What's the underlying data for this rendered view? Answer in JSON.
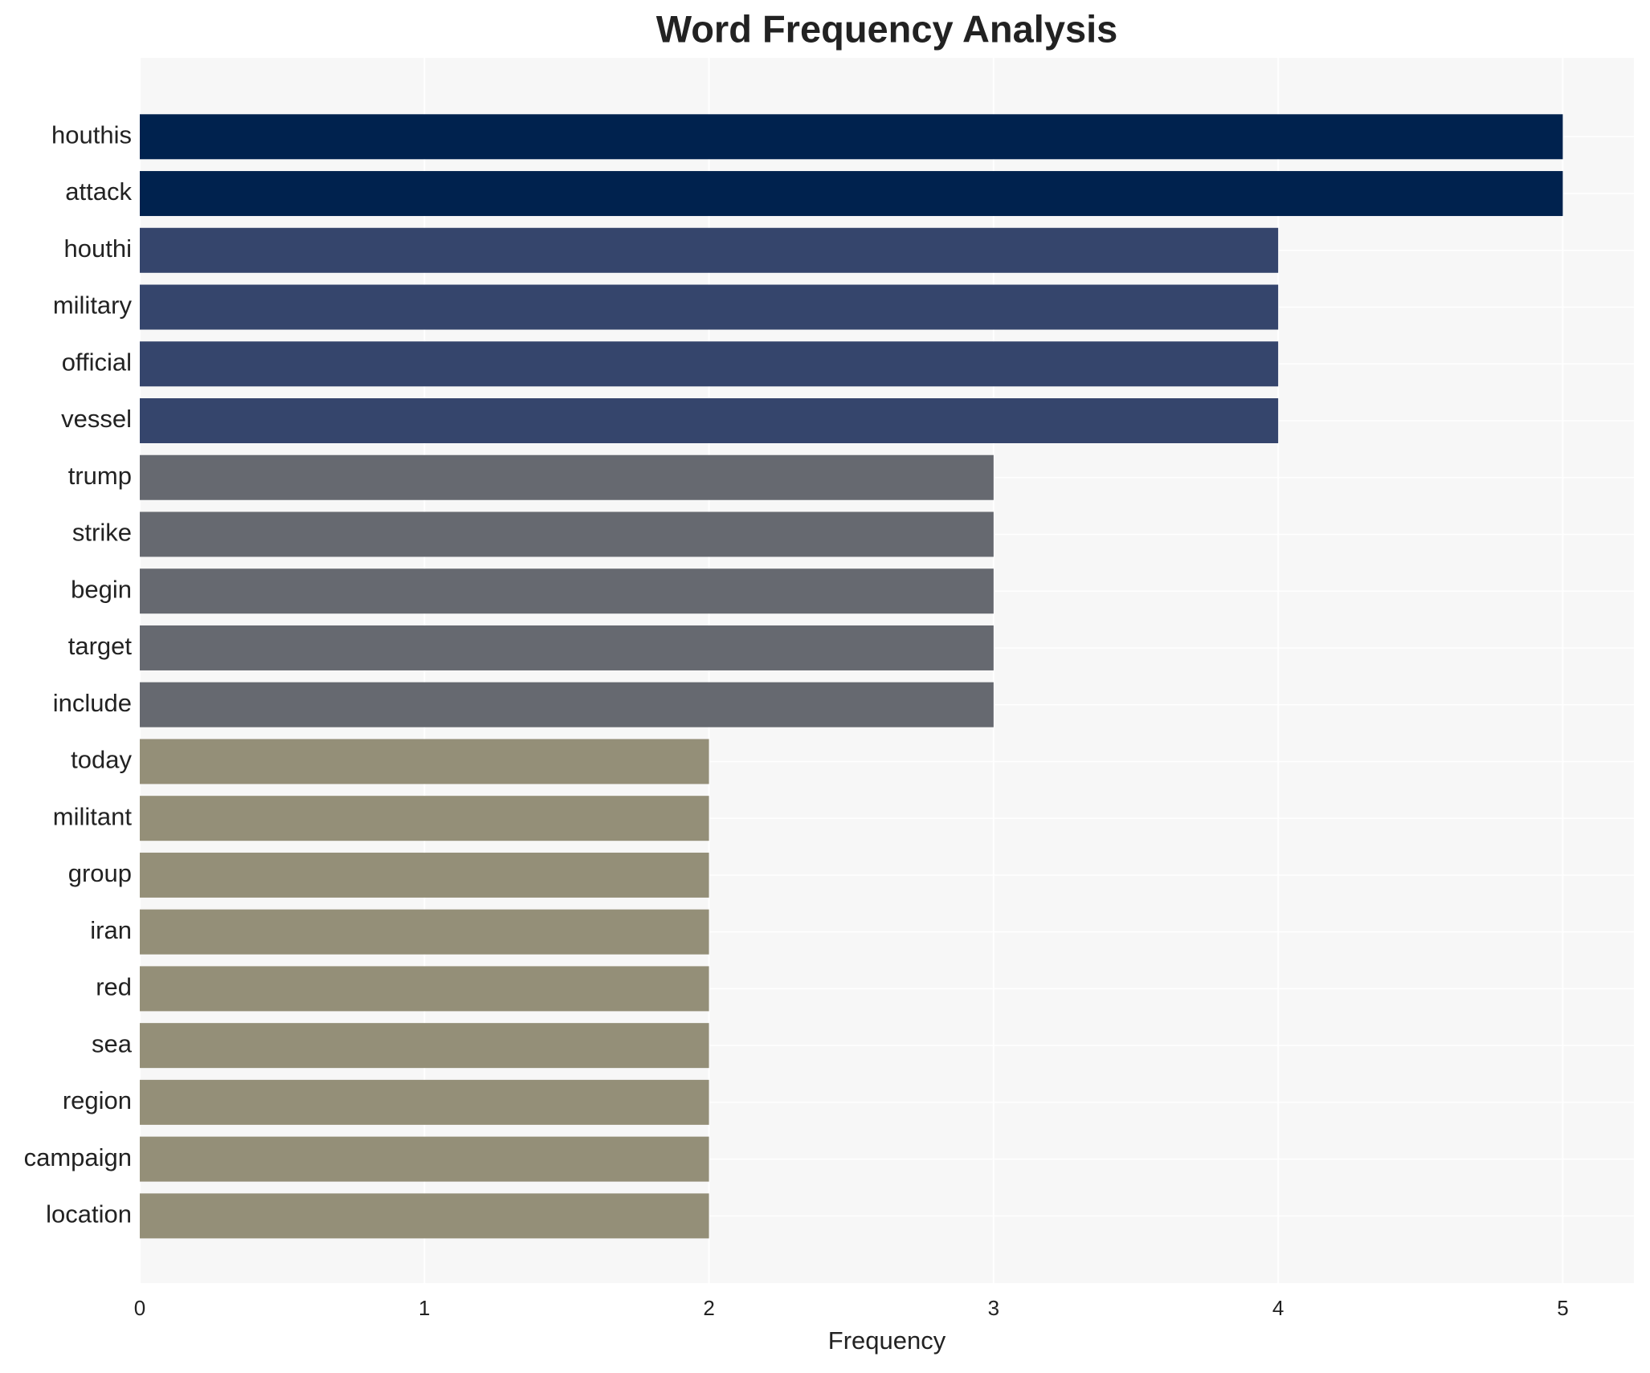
{
  "chart_data": {
    "type": "barh",
    "title": "Word Frequency Analysis",
    "xlabel": "Frequency",
    "categories": [
      "houthis",
      "attack",
      "houthi",
      "military",
      "official",
      "vessel",
      "trump",
      "strike",
      "begin",
      "target",
      "include",
      "today",
      "militant",
      "group",
      "iran",
      "red",
      "sea",
      "region",
      "campaign",
      "location"
    ],
    "values": [
      5,
      5,
      4,
      4,
      4,
      4,
      3,
      3,
      3,
      3,
      3,
      2,
      2,
      2,
      2,
      2,
      2,
      2,
      2,
      2
    ],
    "colors": [
      "#00224e",
      "#00224e",
      "#35456c",
      "#35456c",
      "#35456c",
      "#35456c",
      "#666970",
      "#666970",
      "#666970",
      "#666970",
      "#666970",
      "#948f78",
      "#948f78",
      "#948f78",
      "#948f78",
      "#948f78",
      "#948f78",
      "#948f78",
      "#948f78",
      "#948f78"
    ],
    "xlim": [
      0,
      5.25
    ],
    "xticks": [
      0,
      1,
      2,
      3,
      4,
      5
    ],
    "grid": true
  }
}
